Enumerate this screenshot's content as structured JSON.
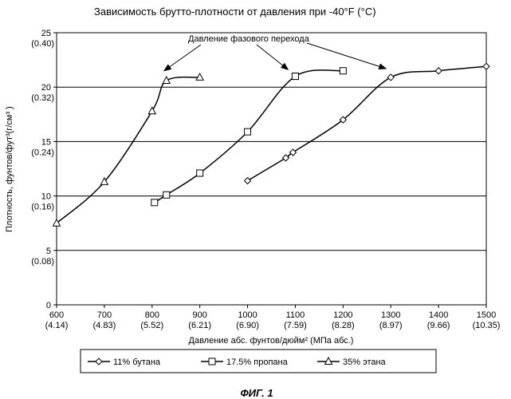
{
  "chart_data": {
    "type": "line",
    "title": "Зависимость брутто-плотности от давления при -40°F (°C)",
    "xlabel": "Давление абс. фунтов/дюйм² (МПа абс.)",
    "ylabel": "Плотность, фунтов/фут³(г/см³ )",
    "xlim": [
      600,
      1500
    ],
    "ylim": [
      0,
      25
    ],
    "grid": "horizontal",
    "legend_position": "bottom",
    "x_ticks": [
      {
        "value": 600,
        "label": "600",
        "sublabel": "(4.14)"
      },
      {
        "value": 700,
        "label": "700",
        "sublabel": "(4.83)"
      },
      {
        "value": 800,
        "label": "800",
        "sublabel": "(5.52)"
      },
      {
        "value": 900,
        "label": "900",
        "sublabel": "(6.21)"
      },
      {
        "value": 1000,
        "label": "1000",
        "sublabel": "(6.90)"
      },
      {
        "value": 1100,
        "label": "1100",
        "sublabel": "(7.59)"
      },
      {
        "value": 1200,
        "label": "1200",
        "sublabel": "(8.28)"
      },
      {
        "value": 1300,
        "label": "1300",
        "sublabel": "(8.97)"
      },
      {
        "value": 1400,
        "label": "1400",
        "sublabel": "(9.66)"
      },
      {
        "value": 1500,
        "label": "1500",
        "sublabel": "(10.35)"
      }
    ],
    "y_ticks": [
      {
        "value": 0,
        "label": "0",
        "sublabel": ""
      },
      {
        "value": 5,
        "label": "5",
        "sublabel": "(0.08)"
      },
      {
        "value": 10,
        "label": "10",
        "sublabel": "(0.16)"
      },
      {
        "value": 15,
        "label": "15",
        "sublabel": "(0.24)"
      },
      {
        "value": 20,
        "label": "20",
        "sublabel": "(0.32)"
      },
      {
        "value": 25,
        "label": "25",
        "sublabel": "(0.40)"
      }
    ],
    "series": [
      {
        "name": "11% бутана",
        "marker": "diamond",
        "points": [
          [
            1000,
            11.4
          ],
          [
            1080,
            13.5
          ],
          [
            1095,
            14.0
          ],
          [
            1200,
            17.0
          ],
          [
            1300,
            20.9
          ],
          [
            1400,
            21.5
          ],
          [
            1500,
            21.9
          ]
        ]
      },
      {
        "name": "17.5% пропана",
        "marker": "square",
        "points": [
          [
            805,
            9.4
          ],
          [
            830,
            10.1
          ],
          [
            900,
            12.1
          ],
          [
            1000,
            15.9
          ],
          [
            1100,
            21.0
          ],
          [
            1100,
            21.0
          ],
          [
            1200,
            21.5
          ]
        ]
      },
      {
        "name": "35% этана",
        "marker": "triangle",
        "points": [
          [
            600,
            7.5
          ],
          [
            700,
            11.3
          ],
          [
            800,
            17.8
          ],
          [
            830,
            20.6
          ],
          [
            900,
            20.9
          ]
        ]
      }
    ],
    "annotation": {
      "text": "Давление фазового перехода",
      "targets": [
        [
          825,
          21.5
        ],
        [
          1085,
          21.6
        ],
        [
          1290,
          21.7
        ]
      ]
    }
  },
  "caption": "ФИГ. 1"
}
